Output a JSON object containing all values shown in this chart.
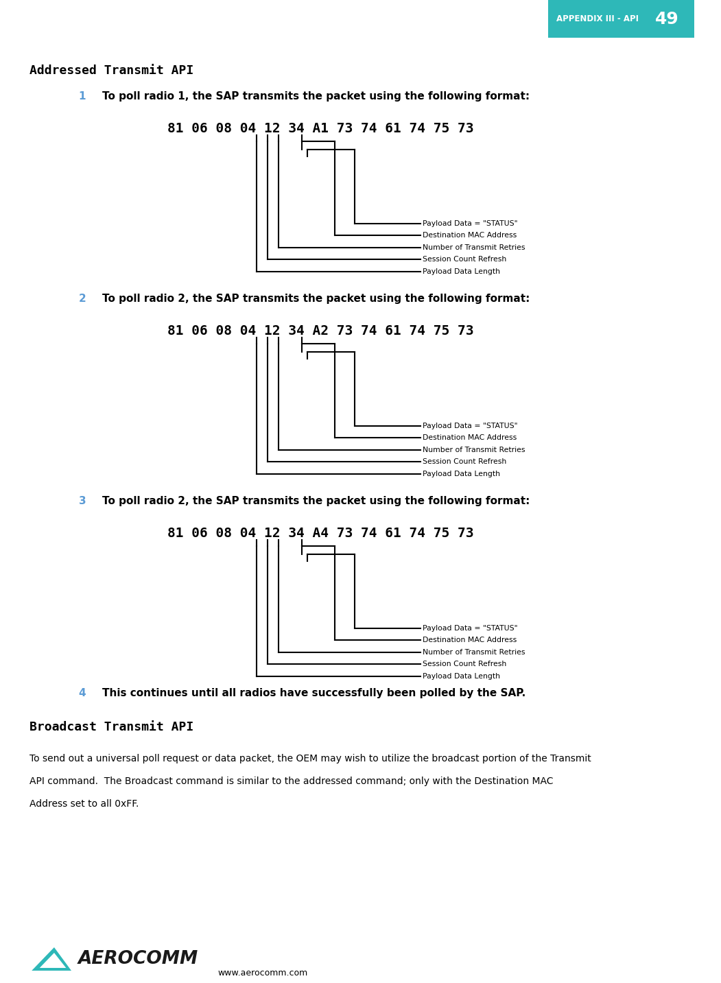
{
  "page_title": "APPENDIX III - API",
  "page_number": "49",
  "section_title": "Addressed Transmit API",
  "items": [
    {
      "num": "1",
      "text": "To poll radio 1, the SAP transmits the packet using the following format:",
      "hex_line": "81 06 08 04 12 34 A1 73 74 61 74 75 73"
    },
    {
      "num": "2",
      "text": "To poll radio 2, the SAP transmits the packet using the following format:",
      "hex_line": "81 06 08 04 12 34 A2 73 74 61 74 75 73"
    },
    {
      "num": "3",
      "text": "To poll radio 2, the SAP transmits the packet using the following format:",
      "hex_line": "81 06 08 04 12 34 A4 73 74 61 74 75 73"
    }
  ],
  "item4_num": "4",
  "item4_text": "This continues until all radios have successfully been polled by the SAP.",
  "broadcast_title": "Broadcast Transmit API",
  "broadcast_lines": [
    "To send out a universal poll request or data packet, the OEM may wish to utilize the broadcast portion of the Transmit",
    "API command.  The Broadcast command is similar to the addressed command; only with the Destination MAC",
    "Address set to all 0xFF."
  ],
  "labels": [
    "Payload Data = \"STATUS\"",
    "Destination MAC Address",
    "Number of Transmit Retries",
    "Session Count Refresh",
    "Payload Data Length"
  ],
  "website": "www.aerocomm.com",
  "header_bg": "#2eb8b8",
  "header_text": "#ffffff",
  "number_color": "#5b9bd5",
  "section_title_color": "#000000"
}
